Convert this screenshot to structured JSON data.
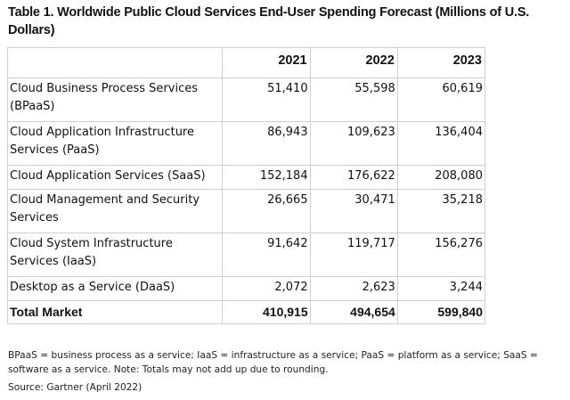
{
  "title": "Table 1. Worldwide Public Cloud Services End-User Spending Forecast (Millions of U.S. Dollars)",
  "table": {
    "columns": [
      "",
      "2021",
      "2022",
      "2023"
    ],
    "rows": [
      {
        "label": "Cloud Business Process Services (BPaaS)",
        "values": [
          "51,410",
          "55,598",
          "60,619"
        ]
      },
      {
        "label": "Cloud Application Infrastructure Services (PaaS)",
        "values": [
          "86,943",
          "109,623",
          "136,404"
        ]
      },
      {
        "label": "Cloud Application Services (SaaS)",
        "values": [
          "152,184",
          "176,622",
          "208,080"
        ]
      },
      {
        "label": "Cloud Management and Security Services",
        "values": [
          "26,665",
          "30,471",
          "35,218"
        ]
      },
      {
        "label": "Cloud System Infrastructure Services (IaaS)",
        "values": [
          "91,642",
          "119,717",
          "156,276"
        ]
      },
      {
        "label": "Desktop as a Service (DaaS)",
        "values": [
          "2,072",
          "2,623",
          "3,244"
        ]
      }
    ],
    "total": {
      "label": "Total Market",
      "values": [
        "410,915",
        "494,654",
        "599,840"
      ]
    }
  },
  "notes": "BPaaS = business process as a service; IaaS = infrastructure as a service; PaaS = platform as a service; SaaS = software as a service. Note: Totals may not add up due to rounding.",
  "source": "Source: Gartner (April 2022)"
}
